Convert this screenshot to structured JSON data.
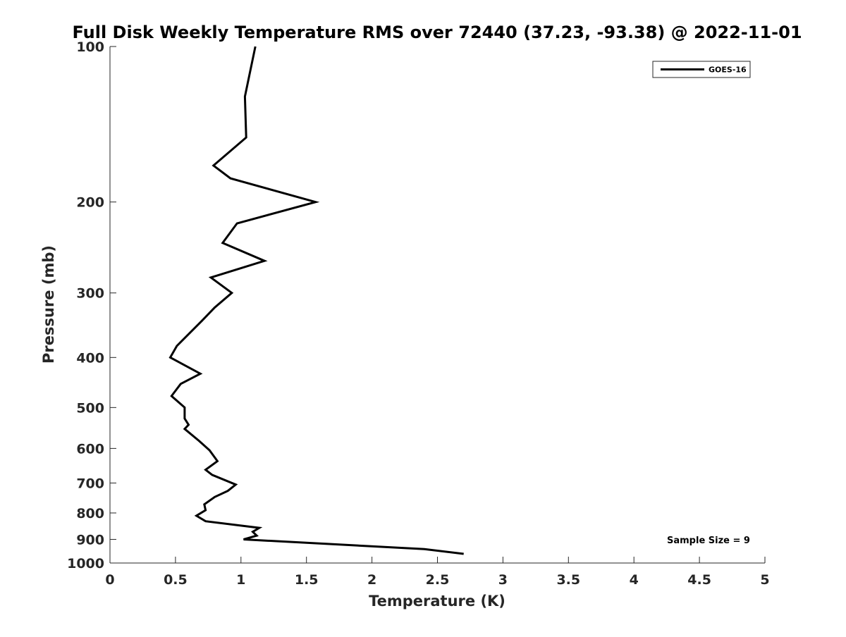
{
  "chart_data": {
    "type": "line",
    "title": "Full Disk Weekly Temperature RMS over 72440 (37.23, -93.38) @ 2022-11-01",
    "xlabel": "Temperature (K)",
    "ylabel": "Pressure (mb)",
    "xlim": [
      0,
      5
    ],
    "ylim": [
      100,
      1000
    ],
    "y_scale": "log",
    "y_reversed": true,
    "x_ticks": [
      "0",
      "0.5",
      "1",
      "1.5",
      "2",
      "2.5",
      "3",
      "3.5",
      "4",
      "4.5",
      "5"
    ],
    "y_ticks": [
      "100",
      "200",
      "300",
      "400",
      "500",
      "600",
      "700",
      "800",
      "900",
      "1000"
    ],
    "grid": false,
    "legend_position": "top-right",
    "line_color": "#000000",
    "series": [
      {
        "name": "GOES-16",
        "points": [
          [
            1.11,
            100
          ],
          [
            1.03,
            125
          ],
          [
            1.04,
            150
          ],
          [
            0.79,
            170
          ],
          [
            0.92,
            180
          ],
          [
            1.57,
            200
          ],
          [
            0.97,
            220
          ],
          [
            0.86,
            240
          ],
          [
            1.18,
            260
          ],
          [
            0.77,
            280
          ],
          [
            0.93,
            300
          ],
          [
            0.8,
            320
          ],
          [
            0.7,
            340
          ],
          [
            0.51,
            380
          ],
          [
            0.46,
            400
          ],
          [
            0.69,
            430
          ],
          [
            0.54,
            450
          ],
          [
            0.47,
            475
          ],
          [
            0.57,
            500
          ],
          [
            0.57,
            525
          ],
          [
            0.6,
            540
          ],
          [
            0.57,
            550
          ],
          [
            0.68,
            580
          ],
          [
            0.76,
            605
          ],
          [
            0.82,
            635
          ],
          [
            0.73,
            660
          ],
          [
            0.78,
            675
          ],
          [
            0.96,
            705
          ],
          [
            0.9,
            725
          ],
          [
            0.8,
            745
          ],
          [
            0.72,
            770
          ],
          [
            0.73,
            790
          ],
          [
            0.66,
            810
          ],
          [
            0.73,
            830
          ],
          [
            1.14,
            855
          ],
          [
            1.09,
            870
          ],
          [
            1.12,
            885
          ],
          [
            1.02,
            900
          ],
          [
            2.4,
            940
          ],
          [
            2.7,
            960
          ]
        ]
      }
    ],
    "annotations": [
      {
        "text": "Sample Size = 9"
      }
    ]
  }
}
